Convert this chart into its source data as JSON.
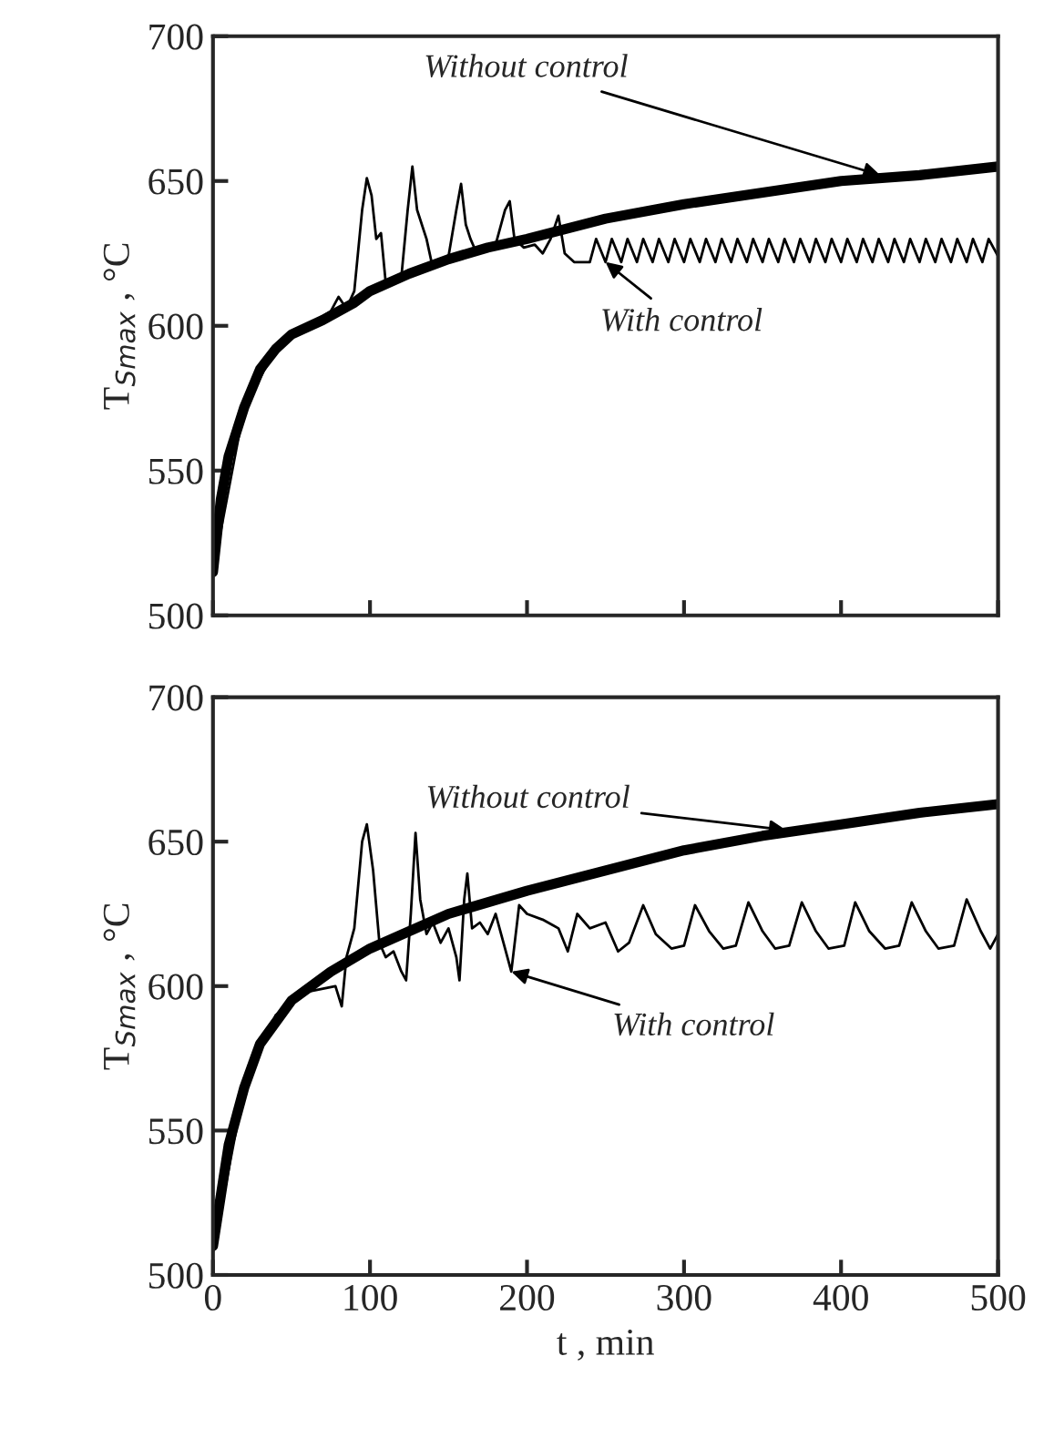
{
  "chart_data": [
    {
      "type": "line",
      "ylabel": "T$_{Smax}$ , °C",
      "xlim": [
        0,
        500
      ],
      "ylim": [
        500,
        700
      ],
      "xticks": [
        0,
        100,
        200,
        300,
        400,
        500
      ],
      "yticks": [
        500,
        550,
        600,
        650,
        700
      ],
      "tick_labels": "y",
      "grid": false,
      "annotations": [
        {
          "text": "Without control",
          "x": 425,
          "y": 652
        },
        {
          "text": "With control",
          "x": 250,
          "y": 622
        }
      ],
      "series": [
        {
          "color": "#000000",
          "x": [
            0,
            5,
            10,
            20,
            30,
            40,
            50,
            70,
            90,
            100,
            125,
            150,
            175,
            200,
            250,
            300,
            350,
            400,
            450,
            500
          ],
          "values": [
            515,
            540,
            555,
            572,
            585,
            592,
            597,
            602,
            608,
            612,
            618,
            623,
            627,
            630,
            637,
            642,
            646,
            650,
            652,
            655
          ]
        },
        {
          "color": "#000000",
          "x": [
            0,
            20,
            40,
            60,
            75,
            80,
            85,
            90,
            95,
            98,
            101,
            104,
            107,
            110,
            120,
            124,
            127,
            130,
            133,
            136,
            140,
            150,
            155,
            158,
            161,
            164,
            168,
            180,
            186,
            189,
            192,
            198,
            205,
            210,
            215,
            220,
            224,
            230,
            240,
            244,
            250,
            254,
            260,
            264,
            270,
            274,
            280,
            284,
            290,
            294,
            300,
            304,
            310,
            314,
            320,
            324,
            330,
            334,
            340,
            344,
            350,
            354,
            360,
            364,
            370,
            374,
            380,
            384,
            390,
            394,
            400,
            404,
            410,
            414,
            420,
            424,
            430,
            434,
            440,
            444,
            450,
            454,
            460,
            464,
            470,
            474,
            480,
            484,
            490,
            494,
            500
          ],
          "values": [
            515,
            572,
            592,
            600,
            605,
            610,
            606,
            612,
            640,
            651,
            645,
            630,
            632,
            615,
            617,
            640,
            655,
            640,
            635,
            630,
            620,
            624,
            640,
            649,
            635,
            630,
            625,
            628,
            640,
            643,
            630,
            627,
            628,
            625,
            630,
            638,
            625,
            622,
            622,
            630,
            622,
            630,
            622,
            630,
            622,
            630,
            622,
            630,
            622,
            630,
            622,
            630,
            622,
            630,
            622,
            630,
            622,
            630,
            622,
            630,
            622,
            630,
            622,
            630,
            622,
            630,
            622,
            630,
            622,
            630,
            622,
            630,
            622,
            630,
            622,
            630,
            622,
            630,
            622,
            630,
            622,
            630,
            622,
            630,
            622,
            630,
            622,
            630,
            622,
            630,
            624
          ]
        }
      ]
    },
    {
      "type": "line",
      "xlabel": "t , min",
      "ylabel": "T$_{Smax}$ , °C",
      "xlim": [
        0,
        500
      ],
      "ylim": [
        500,
        700
      ],
      "xticks": [
        0,
        100,
        200,
        300,
        400,
        500
      ],
      "yticks": [
        500,
        550,
        600,
        650,
        700
      ],
      "grid": false,
      "annotations": [
        {
          "text": "Without control",
          "x": 365,
          "y": 654
        },
        {
          "text": "With control",
          "x": 190,
          "y": 605
        }
      ],
      "series": [
        {
          "color": "#000000",
          "x": [
            0,
            10,
            20,
            30,
            50,
            75,
            100,
            150,
            200,
            250,
            300,
            350,
            400,
            450,
            500
          ],
          "values": [
            510,
            545,
            565,
            580,
            595,
            605,
            613,
            625,
            633,
            640,
            647,
            652,
            656,
            660,
            663
          ]
        },
        {
          "color": "#000000",
          "x": [
            0,
            20,
            40,
            60,
            78,
            82,
            85,
            90,
            95,
            98,
            102,
            106,
            110,
            115,
            120,
            123,
            126,
            129,
            132,
            136,
            140,
            145,
            150,
            155,
            157,
            160,
            162,
            165,
            170,
            175,
            180,
            185,
            190,
            195,
            200,
            210,
            220,
            226,
            232,
            240,
            250,
            258,
            265,
            274,
            282,
            292,
            300,
            307,
            316,
            325,
            333,
            341,
            350,
            358,
            367,
            375,
            384,
            392,
            402,
            409,
            418,
            428,
            437,
            445,
            454,
            462,
            472,
            480,
            489,
            495,
            500
          ],
          "values": [
            508,
            565,
            590,
            598,
            600,
            593,
            610,
            620,
            650,
            656,
            640,
            615,
            610,
            612,
            605,
            602,
            625,
            653,
            630,
            618,
            622,
            615,
            620,
            610,
            602,
            630,
            639,
            620,
            622,
            618,
            625,
            615,
            605,
            628,
            625,
            623,
            620,
            612,
            625,
            620,
            622,
            612,
            615,
            628,
            618,
            613,
            614,
            628,
            619,
            613,
            614,
            629,
            619,
            613,
            614,
            629,
            619,
            613,
            614,
            629,
            619,
            613,
            614,
            629,
            619,
            613,
            614,
            630,
            619,
            613,
            618
          ]
        }
      ]
    }
  ]
}
